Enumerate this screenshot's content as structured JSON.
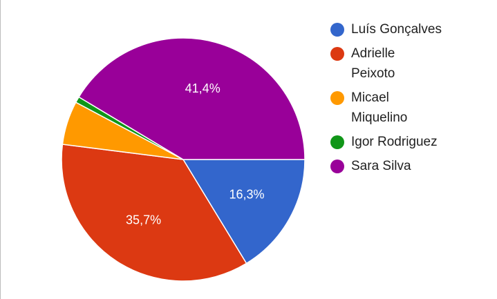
{
  "chart_data": {
    "type": "pie",
    "categories": [
      "Luís Gonçalves",
      "Adrielle Peixoto",
      "Micael Miquelino",
      "Igor Rodriguez",
      "Sara Silva"
    ],
    "values": [
      16.3,
      35.7,
      5.8,
      0.8,
      41.4
    ],
    "value_labels": [
      "16,3%",
      "35,7%",
      null,
      null,
      "41,4%"
    ],
    "colors": [
      "#3366cc",
      "#dc3912",
      "#ff9900",
      "#109618",
      "#990099"
    ],
    "legend": "right"
  }
}
